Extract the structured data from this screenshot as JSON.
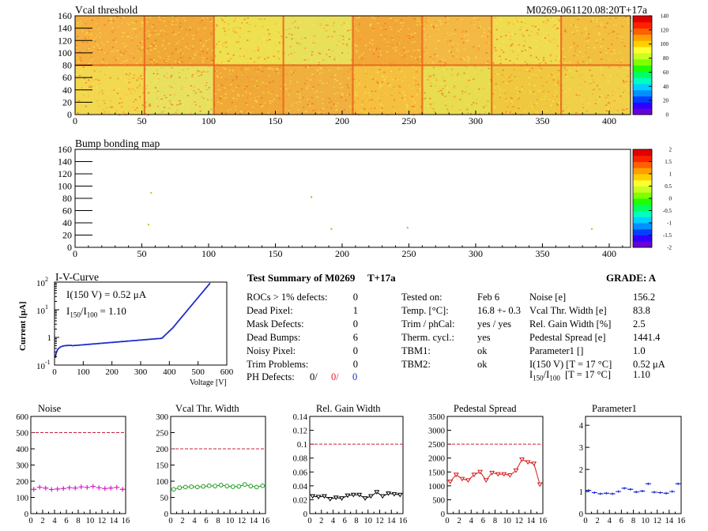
{
  "vcal_map": {
    "title": "Vcal threshold",
    "module_label": "M0269-061120.08:20T+17a",
    "x_ticks": [
      0,
      50,
      100,
      150,
      200,
      250,
      300,
      350,
      400
    ],
    "y_ticks": [
      0,
      20,
      40,
      60,
      80,
      100,
      120,
      140,
      160
    ],
    "xlim": [
      0,
      416
    ],
    "ylim": [
      0,
      160
    ],
    "color_scale_ticks": [
      0,
      20,
      40,
      60,
      80,
      100,
      120,
      140
    ],
    "color_scale_range": [
      0,
      140
    ]
  },
  "bump_map": {
    "title": "Bump bonding map",
    "x_ticks": [
      0,
      50,
      100,
      150,
      200,
      250,
      300,
      350,
      400
    ],
    "y_ticks": [
      0,
      20,
      40,
      60,
      80,
      100,
      120,
      140,
      160
    ],
    "xlim": [
      0,
      416
    ],
    "ylim": [
      0,
      160
    ],
    "color_scale_ticks": [
      "2",
      "1.5",
      "1",
      "0.5",
      "0",
      "-0.5",
      "-1",
      "-1.5",
      "-2"
    ],
    "color_scale_range": [
      -2,
      2
    ],
    "points": [
      [
        57,
        89
      ],
      [
        177,
        82
      ],
      [
        55,
        37
      ],
      [
        249,
        32
      ],
      [
        387,
        30
      ],
      [
        192,
        30
      ]
    ]
  },
  "iv_curve": {
    "title": "I-V-Curve",
    "ylabel": "Current [μA]",
    "xlabel": "Voltage [V]",
    "annot_i150": "I(150 V) = 0.52 μA",
    "annot_ratio_label": "I",
    "annot_ratio_sub1": "150",
    "annot_ratio_slash": "/I",
    "annot_ratio_sub2": "100",
    "annot_ratio_value": " =  1.10",
    "x_ticks": [
      "0",
      "100",
      "200",
      "300",
      "400",
      "500",
      "600"
    ],
    "xlim": [
      0,
      600
    ],
    "y_tick_base": "10",
    "y_tick_exps": [
      "2",
      "1",
      "",
      "-1"
    ],
    "y_tick_plain": [
      "",
      "",
      "1",
      ""
    ],
    "ylim_log": [
      0.1,
      100
    ]
  },
  "summary": {
    "title": "Test Summary of M0269",
    "temp_label": "T+17a",
    "grade_label": "GRADE:  A",
    "left_rows": [
      {
        "label": "ROCs > 1% defects:",
        "value": "0"
      },
      {
        "label": "Dead Pixel:",
        "value": "1"
      },
      {
        "label": "Mask Defects:",
        "value": "0"
      },
      {
        "label": "Dead Bumps:",
        "value": "6"
      },
      {
        "label": "Noisy Pixel:",
        "value": "0"
      },
      {
        "label": "Trim Problems:",
        "value": "0"
      }
    ],
    "ph_label": "PH Defects:",
    "ph_val1": "0/",
    "ph_val2": "0/",
    "ph_val3": "0",
    "ph_colors": [
      "#000000",
      "#e8202a",
      "#1f2bd0"
    ],
    "mid_rows": [
      {
        "label": "Tested on:",
        "value": "Feb 6"
      },
      {
        "label": "Temp. [°C]:",
        "value": "16.8 +- 0.3"
      },
      {
        "label": "Trim / phCal:",
        "value": "yes / yes"
      },
      {
        "label": "Therm. cycl.:",
        "value": "yes"
      },
      {
        "label": "TBM1:",
        "value": "ok"
      },
      {
        "label": "TBM2:",
        "value": "ok"
      }
    ],
    "right_rows": [
      {
        "label": "Noise [e]",
        "value": "156.2"
      },
      {
        "label": "Vcal Thr. Width [e]",
        "value": "83.8"
      },
      {
        "label": "Rel. Gain Width [%]",
        "value": "2.5"
      },
      {
        "label": "Pedestal Spread [e]",
        "value": "1441.4"
      },
      {
        "label": "Parameter1 []",
        "value": "1.0"
      },
      {
        "label": "I(150 V) [T = 17 °C]",
        "value": "0.52 μA"
      }
    ],
    "ratio_row": {
      "label_main": "I",
      "sub1": "150",
      "slash": "/I",
      "sub2": "100",
      "label_rest": "  [T = 17 °C]",
      "value": "1.10"
    }
  },
  "chart_data": [
    {
      "type": "scatter",
      "title": "Noise",
      "x": [
        0,
        1,
        2,
        3,
        4,
        5,
        6,
        7,
        8,
        9,
        10,
        11,
        12,
        13,
        14,
        15
      ],
      "values": [
        150,
        163,
        158,
        149,
        152,
        155,
        160,
        158,
        165,
        162,
        168,
        160,
        155,
        158,
        162,
        150
      ],
      "ylim": [
        0,
        600
      ],
      "y_ticks": [
        "0",
        "100",
        "200",
        "300",
        "400",
        "500",
        "600"
      ],
      "x_ticks": [
        "0",
        "2",
        "4",
        "6",
        "8",
        "10",
        "12",
        "14",
        "16"
      ],
      "limit": 500,
      "color": "#d41fc8",
      "marker": "plus",
      "connect": false
    },
    {
      "type": "line",
      "title": "Vcal Thr. Width",
      "x": [
        0,
        1,
        2,
        3,
        4,
        5,
        6,
        7,
        8,
        9,
        10,
        11,
        12,
        13,
        14,
        15
      ],
      "values": [
        75,
        80,
        82,
        83,
        82,
        84,
        86,
        85,
        88,
        85,
        83,
        84,
        90,
        85,
        82,
        86
      ],
      "ylim": [
        0,
        300
      ],
      "y_ticks": [
        "0",
        "50",
        "100",
        "150",
        "200",
        "250",
        "300"
      ],
      "x_ticks": [
        "0",
        "2",
        "4",
        "6",
        "8",
        "10",
        "12",
        "14",
        "16"
      ],
      "limit": 200,
      "color": "#1f9a1f",
      "marker": "circle",
      "connect": true
    },
    {
      "type": "line",
      "title": "Rel. Gain Width",
      "x": [
        0,
        1,
        2,
        3,
        4,
        5,
        6,
        7,
        8,
        9,
        10,
        11,
        12,
        13,
        14,
        15
      ],
      "values": [
        0.025,
        0.024,
        0.025,
        0.021,
        0.023,
        0.022,
        0.026,
        0.027,
        0.027,
        0.022,
        0.025,
        0.031,
        0.025,
        0.029,
        0.028,
        0.027
      ],
      "ylim": [
        0,
        0.14
      ],
      "y_ticks": [
        "0",
        "0.02",
        "0.04",
        "0.06",
        "0.08",
        "0.1",
        "0.12",
        "0.14"
      ],
      "x_ticks": [
        "0",
        "2",
        "4",
        "6",
        "8",
        "10",
        "12",
        "14",
        "16"
      ],
      "limit": 0.1,
      "color": "#000000",
      "marker": "tri",
      "connect": true
    },
    {
      "type": "line",
      "title": "Pedestal Spread",
      "x": [
        0,
        1,
        2,
        3,
        4,
        5,
        6,
        7,
        8,
        9,
        10,
        11,
        12,
        13,
        14,
        15
      ],
      "values": [
        1150,
        1400,
        1250,
        1200,
        1400,
        1500,
        1200,
        1470,
        1420,
        1420,
        1380,
        1550,
        1950,
        1850,
        1800,
        1050
      ],
      "ylim": [
        0,
        3500
      ],
      "y_ticks": [
        "0",
        "500",
        "1000",
        "1500",
        "2000",
        "2500",
        "3000",
        "3500"
      ],
      "x_ticks": [
        "0",
        "2",
        "4",
        "6",
        "8",
        "10",
        "12",
        "14",
        "16"
      ],
      "limit": 2500,
      "color": "#d51a1a",
      "marker": "tri",
      "connect": true
    },
    {
      "type": "scatter",
      "title": "Parameter1",
      "x": [
        0,
        1,
        2,
        3,
        4,
        5,
        6,
        7,
        8,
        9,
        10,
        11,
        12,
        13,
        14,
        15
      ],
      "values": [
        1.05,
        0.95,
        0.9,
        0.92,
        0.9,
        1.0,
        1.15,
        1.1,
        0.98,
        1.02,
        1.35,
        0.97,
        0.95,
        0.92,
        1.0,
        1.35
      ],
      "ylim": [
        0,
        4.4
      ],
      "y_ticks": [
        "0",
        "1",
        "2",
        "3",
        "4"
      ],
      "x_ticks": [
        "0",
        "2",
        "4",
        "6",
        "8",
        "10",
        "12",
        "14",
        "16"
      ],
      "limit": null,
      "color": "#1f2bd0",
      "marker": "hbar",
      "connect": false
    }
  ]
}
